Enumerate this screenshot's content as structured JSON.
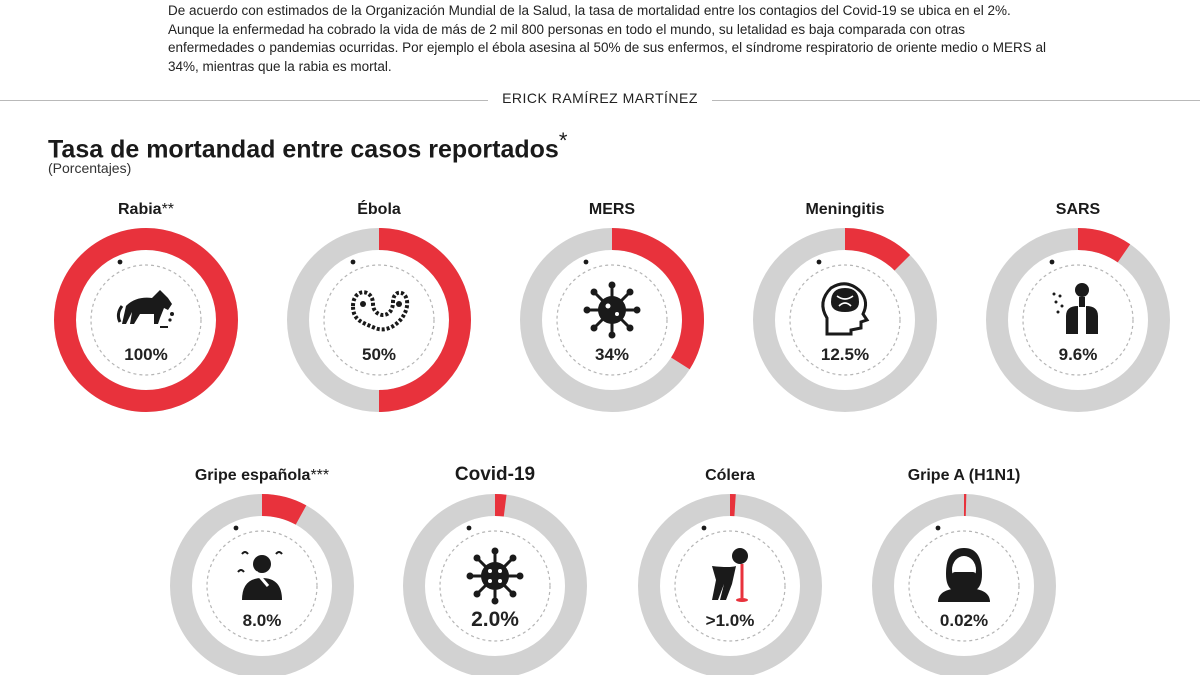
{
  "intro_text": "De acuerdo con estimados de la Organización Mundial de la Salud, la tasa de mortalidad entre los contagios del Covid-19 se ubica en el 2%. Aunque la enfermedad ha cobrado la vida de más de 2 mil 800 personas en todo el mundo, su letalidad es baja comparada con otras enfermedades o pandemias ocurridas. Por ejemplo el ébola asesina al 50% de sus enfermos, el síndrome respiratorio de oriente medio o MERS al 34%, mientras que la rabia es mortal.",
  "byline": "ERICK RAMÍREZ MARTÍNEZ",
  "colors": {
    "accent": "#e8323c",
    "track": "#d2d2d2",
    "dashed": "#b5b5b5"
  },
  "chart_data": {
    "type": "pie",
    "title": "Tasa de mortandad entre casos reportados",
    "title_mark": "*",
    "subtitle": "(Porcentajes)",
    "unit": "%",
    "items": [
      {
        "name": "Rabia",
        "mark": "**",
        "value": 100,
        "display": "100%",
        "icon": "dog-icon"
      },
      {
        "name": "Ébola",
        "mark": "",
        "value": 50,
        "display": "50%",
        "icon": "virus-worm-icon"
      },
      {
        "name": "MERS",
        "mark": "",
        "value": 34,
        "display": "34%",
        "icon": "virus-spikes-icon"
      },
      {
        "name": "Meningitis",
        "mark": "",
        "value": 12.5,
        "display": "12.5%",
        "icon": "head-brain-icon"
      },
      {
        "name": "SARS",
        "mark": "",
        "value": 9.6,
        "display": "9.6%",
        "icon": "lungs-cough-icon"
      },
      {
        "name": "Gripe española",
        "mark": "***",
        "value": 8.0,
        "display": "8.0%",
        "icon": "sick-person-icon"
      },
      {
        "name": "Covid-19",
        "mark": "",
        "value": 2.0,
        "display": "2.0%",
        "icon": "coronavirus-icon",
        "highlight": true
      },
      {
        "name": "Cólera",
        "mark": "",
        "value": 1.0,
        "display": ">1.0%",
        "icon": "vomiting-person-icon"
      },
      {
        "name": "Gripe A (H1N1)",
        "mark": "",
        "value": 0.02,
        "display": "0.02%",
        "icon": "masked-person-icon"
      }
    ]
  }
}
